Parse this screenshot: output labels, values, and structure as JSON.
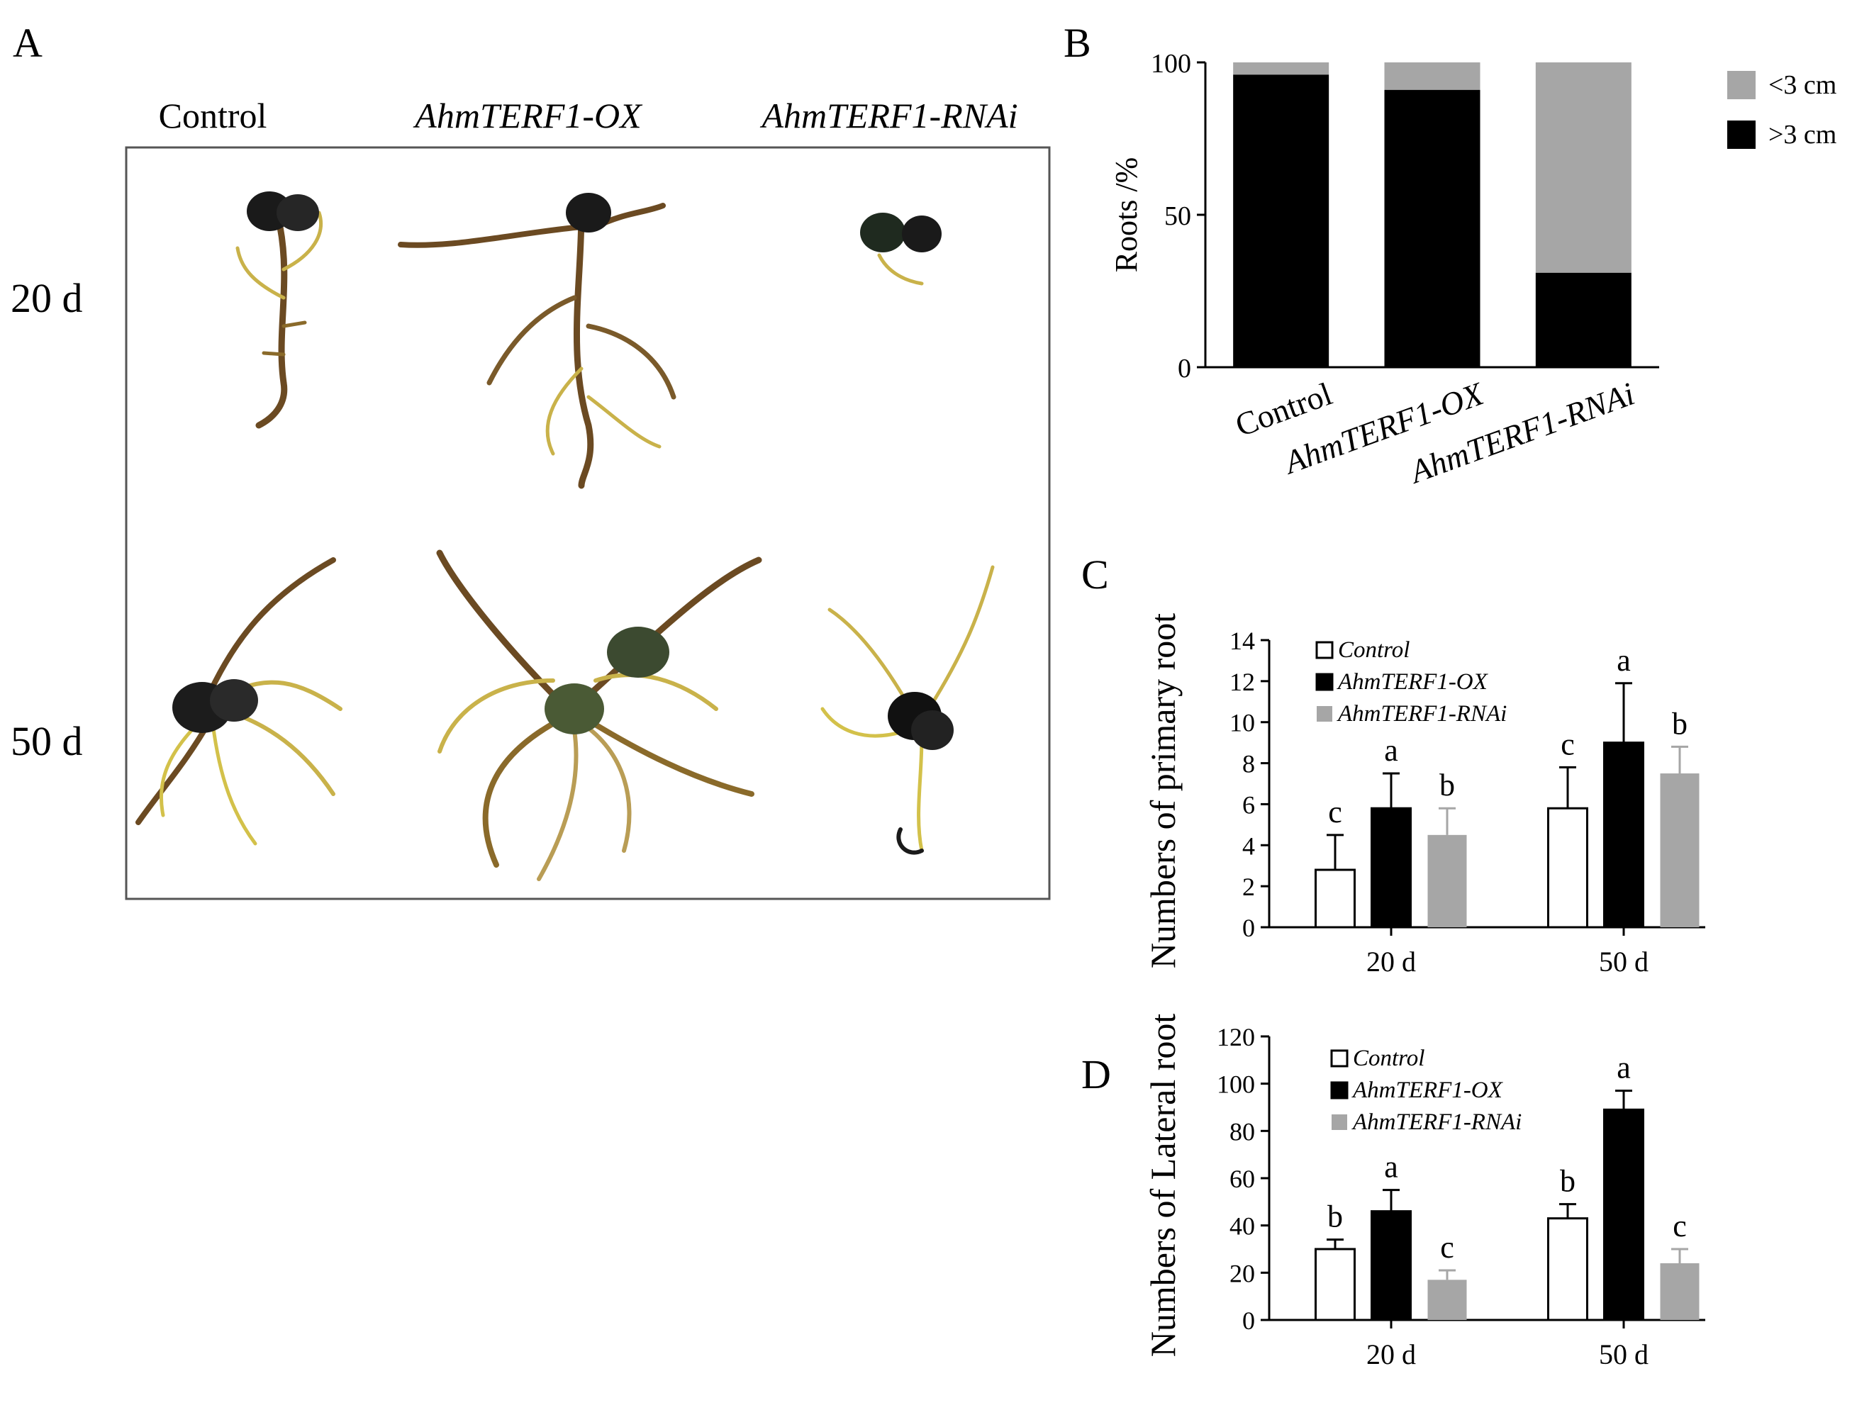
{
  "panel_labels": {
    "a": "A",
    "b": "B",
    "c": "C",
    "d": "D"
  },
  "panel_a": {
    "columns": [
      "Control",
      "AhmTERF1-OX",
      "AhmTERF1-RNAi"
    ],
    "rows": [
      "20 d",
      "50 d"
    ],
    "image_description_none": ""
  },
  "colors": {
    "black": "#000000",
    "gray": "#a6a6a6",
    "white": "#ffffff"
  },
  "chart_data": [
    {
      "id": "B",
      "type": "bar",
      "stacked": true,
      "categories": [
        "Control",
        "AhmTERF1-OX",
        "AhmTERF1-RNAi"
      ],
      "series": [
        {
          "name": ">3 cm",
          "values": [
            96,
            91,
            31
          ],
          "color": "#000000"
        },
        {
          "name": "<3 cm",
          "values": [
            4,
            9,
            69
          ],
          "color": "#a6a6a6"
        }
      ],
      "ylabel": "Roots /%",
      "ylim": [
        0,
        100
      ],
      "yticks": [
        0,
        50,
        100
      ],
      "legend": "top-right"
    },
    {
      "id": "C",
      "type": "bar",
      "categories": [
        "20 d",
        "50 d"
      ],
      "series": [
        {
          "name": "Control",
          "values": [
            2.8,
            5.8
          ],
          "errors": [
            1.7,
            2.0
          ],
          "letters": [
            "c",
            "c"
          ],
          "color": "#ffffff"
        },
        {
          "name": "AhmTERF1-OX",
          "values": [
            5.8,
            9.0
          ],
          "errors": [
            1.7,
            2.9
          ],
          "letters": [
            "a",
            "a"
          ],
          "color": "#000000"
        },
        {
          "name": "AhmTERF1-RNAi",
          "values": [
            4.5,
            7.5
          ],
          "errors": [
            1.3,
            1.3
          ],
          "letters": [
            "b",
            "b"
          ],
          "color": "#a6a6a6"
        }
      ],
      "ylabel": "Numbers of primary root",
      "ylim": [
        0,
        14
      ],
      "yticks": [
        0,
        2,
        4,
        6,
        8,
        10,
        12,
        14
      ],
      "legend": "top-left"
    },
    {
      "id": "D",
      "type": "bar",
      "categories": [
        "20 d",
        "50 d"
      ],
      "series": [
        {
          "name": "Control",
          "values": [
            30,
            43
          ],
          "errors": [
            4,
            6
          ],
          "letters": [
            "b",
            "b"
          ],
          "color": "#ffffff"
        },
        {
          "name": "AhmTERF1-OX",
          "values": [
            46,
            89
          ],
          "errors": [
            9,
            8
          ],
          "letters": [
            "a",
            "a"
          ],
          "color": "#000000"
        },
        {
          "name": "AhmTERF1-RNAi",
          "values": [
            17,
            24
          ],
          "errors": [
            4,
            6
          ],
          "letters": [
            "c",
            "c"
          ],
          "color": "#a6a6a6"
        }
      ],
      "ylabel": "Numbers of Lateral root",
      "ylim": [
        0,
        120
      ],
      "yticks": [
        0,
        20,
        40,
        60,
        80,
        100,
        120
      ],
      "legend": "top-left"
    }
  ]
}
